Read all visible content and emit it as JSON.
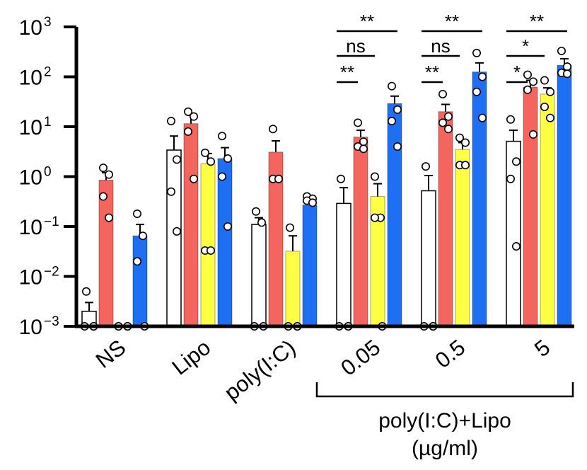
{
  "chart_data": {
    "type": "bar",
    "title": "",
    "xlabel": "",
    "ylabel": "",
    "yscale": "log",
    "ylim": [
      0.001,
      1000
    ],
    "yticks": [
      {
        "base": "10",
        "exp": "3",
        "value": 1000
      },
      {
        "base": "10",
        "exp": "2",
        "value": 100
      },
      {
        "base": "10",
        "exp": "1",
        "value": 10
      },
      {
        "base": "10",
        "exp": "0",
        "value": 1
      },
      {
        "base": "10",
        "exp": "−1",
        "value": 0.1
      },
      {
        "base": "10",
        "exp": "−2",
        "value": 0.01
      },
      {
        "base": "10",
        "exp": "−3",
        "value": 0.001
      }
    ],
    "categories": [
      "NS",
      "Lipo",
      "poly(I:C)",
      "0.05",
      "0.5",
      "5"
    ],
    "group_bracket": {
      "label_line1": "poly(I:C)+Lipo",
      "label_line2": "(µg/ml)",
      "categories": [
        "0.05",
        "0.5",
        "5"
      ]
    },
    "series": [
      {
        "color": "#ffffff",
        "values": [
          0.002,
          3.4,
          0.11,
          0.29,
          0.52,
          5.1
        ],
        "errors": [
          0.003,
          6.5,
          0.15,
          0.6,
          1.05,
          8.5
        ],
        "points": [
          [
            0.005,
            0.001,
            0.001,
            0.001
          ],
          [
            13,
            2.2,
            0.5,
            0.08
          ],
          [
            0.2,
            0.12,
            0.001,
            0.001
          ],
          [
            0.9,
            0.001,
            0.001,
            0.001
          ],
          [
            1.6,
            0.001,
            0.001,
            0.001
          ],
          [
            14,
            2.0,
            0.9,
            0.04
          ]
        ]
      },
      {
        "color": "#f4655f",
        "values": [
          0.85,
          11.5,
          3.1,
          6.2,
          20,
          62
        ],
        "errors": [
          1.2,
          17,
          5.2,
          8.5,
          28,
          85
        ],
        "points": [
          [
            1.5,
            1.1,
            0.4,
            0.15
          ],
          [
            20,
            16,
            8,
            0.9
          ],
          [
            9,
            0.9,
            0.9,
            0.9
          ],
          [
            12,
            5,
            4,
            3.6
          ],
          [
            45,
            16,
            12,
            9
          ],
          [
            110,
            80,
            55,
            7
          ]
        ]
      },
      {
        "color": "#ffff44",
        "values": [
          0.001,
          1.8,
          0.032,
          0.4,
          3.5,
          45
        ],
        "errors": [
          0.001,
          2.9,
          0.065,
          0.72,
          4.8,
          60
        ],
        "points": [
          [
            0.001,
            0.001,
            0.001,
            0.001
          ],
          [
            3,
            2,
            0.033,
            0.033
          ],
          [
            0.095,
            0.001,
            0.001,
            0.001
          ],
          [
            1.0,
            0.15,
            0.15,
            0.001
          ],
          [
            6,
            4.8,
            1.7,
            1.7
          ],
          [
            85,
            50,
            25,
            15
          ]
        ]
      },
      {
        "color": "#1e6ff2",
        "values": [
          0.065,
          2.3,
          0.27,
          29,
          125,
          170
        ],
        "errors": [
          0.11,
          3.8,
          0.33,
          41,
          190,
          230
        ],
        "points": [
          [
            0.18,
            0.065,
            0.02,
            0.001
          ],
          [
            6.5,
            2.3,
            1.0,
            0.1
          ],
          [
            0.4,
            0.36,
            0.33,
            0.3
          ],
          [
            65,
            22,
            13,
            4
          ],
          [
            300,
            100,
            50,
            15
          ],
          [
            330,
            160,
            120,
            115
          ]
        ]
      }
    ],
    "significance": [
      {
        "label": "**",
        "group": 3,
        "level": 0
      },
      {
        "label": "ns",
        "group": 3,
        "level": 1
      },
      {
        "label": "**",
        "group": 3,
        "level": 2
      },
      {
        "label": "**",
        "group": 4,
        "level": 0
      },
      {
        "label": "ns",
        "group": 4,
        "level": 1
      },
      {
        "label": "**",
        "group": 4,
        "level": 2
      },
      {
        "label": "**",
        "group": 5,
        "level": 0
      },
      {
        "label": "*",
        "group": 5,
        "level": 1
      },
      {
        "label": "*",
        "group": 5,
        "level": 2
      }
    ],
    "grid": false,
    "legend": "none"
  }
}
